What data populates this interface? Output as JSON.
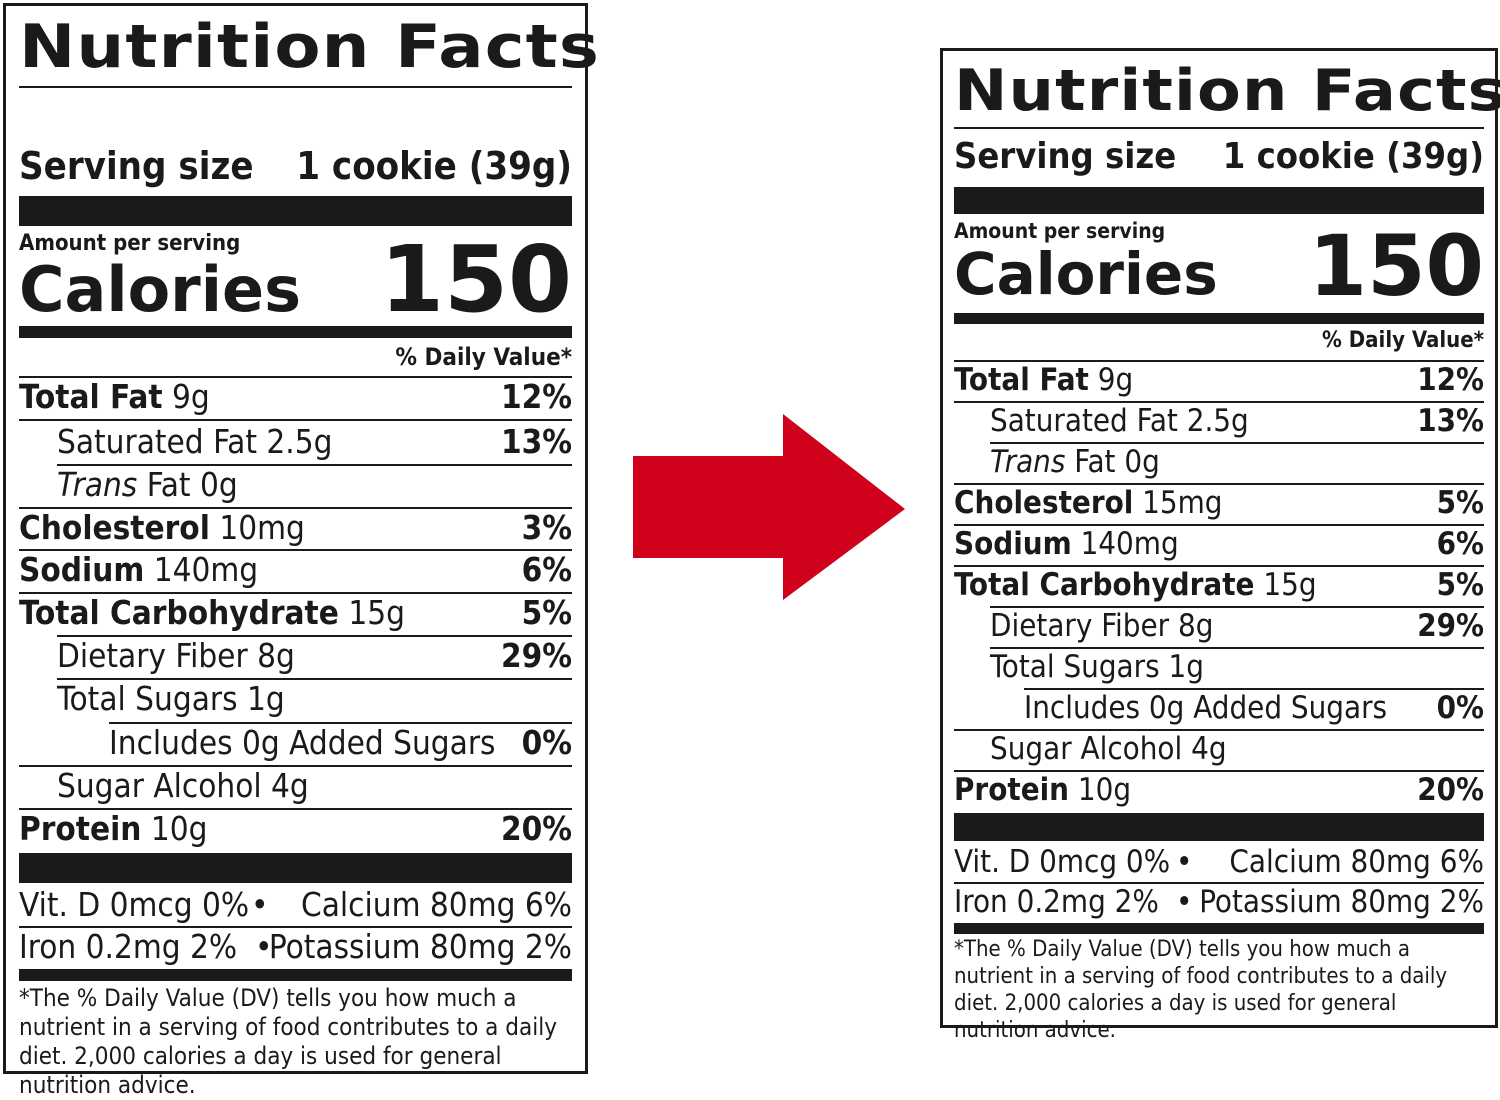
{
  "labels": [
    {
      "title": "Nutrition Facts",
      "serving_label": "Serving size",
      "serving_value": "1 cookie (39g)",
      "amount_per_serving": "Amount per serving",
      "calories_label": "Calories",
      "calories_value": "150",
      "daily_value_header": "% Daily Value*",
      "nutrients": [
        {
          "name": "Total Fat",
          "amount": "9g",
          "dv": "12%"
        },
        {
          "name": "Saturated Fat",
          "amount": "2.5g",
          "dv": "13%"
        },
        {
          "name": "Trans",
          "name2": "Fat",
          "amount": "0g",
          "dv": ""
        },
        {
          "name": "Cholesterol",
          "amount": "10mg",
          "dv": "3%"
        },
        {
          "name": "Sodium",
          "amount": "140mg",
          "dv": "6%"
        },
        {
          "name": "Total Carbohydrate",
          "amount": "15g",
          "dv": "5%"
        },
        {
          "name": "Dietary Fiber",
          "amount": "8g",
          "dv": "29%"
        },
        {
          "name": "Total Sugars",
          "amount": "1g",
          "dv": ""
        },
        {
          "name": "Includes 0g Added Sugars",
          "amount": "",
          "dv": "0%"
        },
        {
          "name": "Sugar Alcohol",
          "amount": "4g",
          "dv": ""
        },
        {
          "name": "Protein",
          "amount": "10g",
          "dv": "20%"
        }
      ],
      "vitamins": [
        {
          "left": "Vit. D 0mcg 0%",
          "right": "Calcium 80mg 6%"
        },
        {
          "left": "Iron 0.2mg 2%",
          "right": "Potassium 80mg 2%"
        }
      ],
      "bullet": "•",
      "footnote": "*The % Daily Value (DV) tells you how much a nutrient in a serving of food contributes to a daily diet. 2,000 calories a day is used for general nutrition advice."
    },
    {
      "title": "Nutrition Facts",
      "serving_label": "Serving size",
      "serving_value": "1 cookie (39g)",
      "amount_per_serving": "Amount per serving",
      "calories_label": "Calories",
      "calories_value": "150",
      "daily_value_header": "% Daily Value*",
      "nutrients": [
        {
          "name": "Total Fat",
          "amount": "9g",
          "dv": "12%"
        },
        {
          "name": "Saturated Fat",
          "amount": "2.5g",
          "dv": "13%"
        },
        {
          "name": "Trans",
          "name2": "Fat",
          "amount": "0g",
          "dv": ""
        },
        {
          "name": "Cholesterol",
          "amount": "15mg",
          "dv": "5%"
        },
        {
          "name": "Sodium",
          "amount": "140mg",
          "dv": "6%"
        },
        {
          "name": "Total Carbohydrate",
          "amount": "15g",
          "dv": "5%"
        },
        {
          "name": "Dietary Fiber",
          "amount": "8g",
          "dv": "29%"
        },
        {
          "name": "Total Sugars",
          "amount": "1g",
          "dv": ""
        },
        {
          "name": "Includes 0g Added Sugars",
          "amount": "",
          "dv": "0%"
        },
        {
          "name": "Sugar Alcohol",
          "amount": "4g",
          "dv": ""
        },
        {
          "name": "Protein",
          "amount": "10g",
          "dv": "20%"
        }
      ],
      "vitamins": [
        {
          "left": "Vit. D 0mcg 0%",
          "right": "Calcium 80mg 6%"
        },
        {
          "left": "Iron 0.2mg 2%",
          "right": "Potassium 80mg 2%"
        }
      ],
      "bullet": "•",
      "footnote": "*The % Daily Value (DV) tells you how much a nutrient in a serving of food contributes to a daily diet. 2,000 calories a day is used for general nutrition advice."
    }
  ],
  "arrow": {
    "icon": "right-arrow-icon",
    "color": "#d0021b"
  }
}
